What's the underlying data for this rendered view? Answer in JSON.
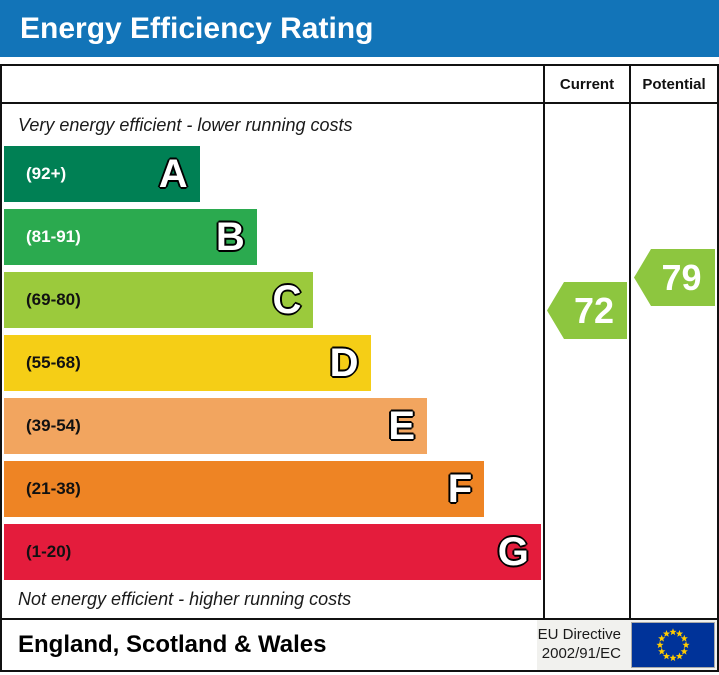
{
  "title": "Energy Efficiency Rating",
  "columns": {
    "current": "Current",
    "potential": "Potential"
  },
  "top_note": "Very energy efficient - lower running costs",
  "bottom_note": "Not energy efficient - higher running costs",
  "bands": [
    {
      "letter": "A",
      "range": "(92+)",
      "color": "#008054",
      "label_color": "#ffffff",
      "width_pct": 36.3
    },
    {
      "letter": "B",
      "range": "(81-91)",
      "color": "#2BAA4F",
      "label_color": "#ffffff",
      "width_pct": 46.9
    },
    {
      "letter": "C",
      "range": "(69-80)",
      "color": "#9BCA3C",
      "label_color": "#111111",
      "width_pct": 57.4
    },
    {
      "letter": "D",
      "range": "(55-68)",
      "color": "#F5CE16",
      "label_color": "#111111",
      "width_pct": 68.0
    },
    {
      "letter": "E",
      "range": "(39-54)",
      "color": "#F2A55F",
      "label_color": "#111111",
      "width_pct": 78.5
    },
    {
      "letter": "F",
      "range": "(21-38)",
      "color": "#EE8424",
      "label_color": "#111111",
      "width_pct": 89.1
    },
    {
      "letter": "G",
      "range": "(1-20)",
      "color": "#E41C3C",
      "label_color": "#111111",
      "width_pct": 99.6
    }
  ],
  "ratings": {
    "current": {
      "value": "72",
      "color": "#8DC63F"
    },
    "potential": {
      "value": "79",
      "color": "#8DC63F"
    }
  },
  "footer": {
    "region": "England, Scotland & Wales",
    "directive_line1": "EU Directive",
    "directive_line2": "2002/91/EC",
    "flag_icon": "eu-flag-icon",
    "flag_colors": {
      "field": "#003399",
      "stars": "#FFCC00"
    }
  },
  "theme": {
    "title_bg": "#1274B8",
    "border": "#111111"
  },
  "chart_data": {
    "type": "bar",
    "title": "Energy Efficiency Rating",
    "categories": [
      "A",
      "B",
      "C",
      "D",
      "E",
      "F",
      "G"
    ],
    "ranges": [
      "(92+)",
      "(81-91)",
      "(69-80)",
      "(55-68)",
      "(39-54)",
      "(21-38)",
      "(1-20)"
    ],
    "colors": [
      "#008054",
      "#2BAA4F",
      "#9BCA3C",
      "#F5CE16",
      "#F2A55F",
      "#EE8424",
      "#E41C3C"
    ],
    "bar_lengths_relative": [
      0.36,
      0.47,
      0.57,
      0.68,
      0.79,
      0.89,
      1.0
    ],
    "annotations": {
      "current": 72,
      "potential": 79,
      "current_band": "C",
      "potential_band": "C"
    },
    "notes": [
      "Very energy efficient - lower running costs",
      "Not energy efficient - higher running costs"
    ],
    "legend_position": "none",
    "grid": false
  }
}
